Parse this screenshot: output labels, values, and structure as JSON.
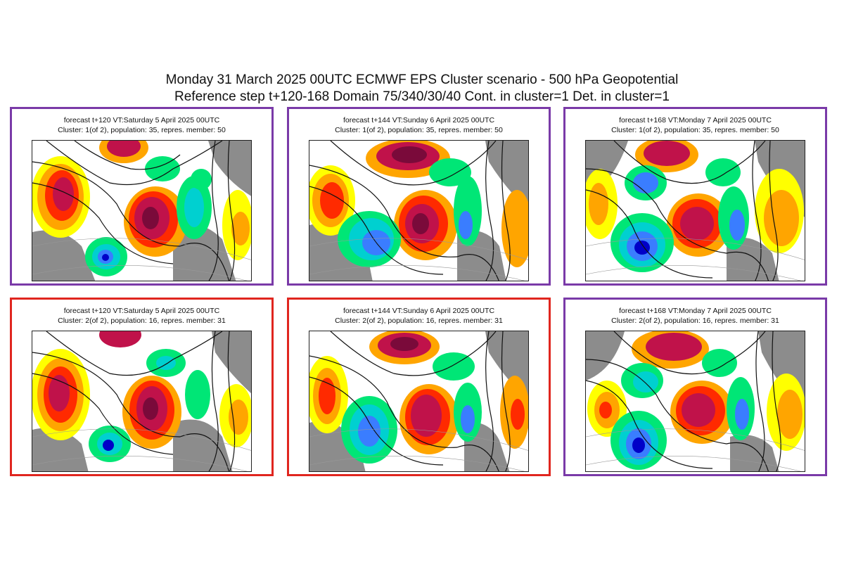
{
  "title": {
    "line1": "Monday 31 March 2025 00UTC ECMWF EPS Cluster scenario - 500 hPa Geopotential",
    "line2": "Reference step t+120-168 Domain 75/340/30/40 Cont. in cluster=1 Det. in cluster=1"
  },
  "colors": {
    "cluster1_border": "#7a3aa8",
    "cluster2_border": "#e0261f",
    "anomaly_positive": [
      "#ffff00",
      "#ffa500",
      "#ff2a00",
      "#c0124a",
      "#7a0a3a"
    ],
    "anomaly_negative": [
      "#00e676",
      "#00d0d0",
      "#3a7dff",
      "#0000c8"
    ],
    "land_mask": "#8c8c8c"
  },
  "panels": [
    {
      "header": "forecast t+120 VT:Saturday 5 April 2025 00UTC",
      "cluster": "Cluster: 1(of 2), population: 35, repres. member: 50",
      "border": "purple"
    },
    {
      "header": "forecast t+144 VT:Sunday 6 April 2025 00UTC",
      "cluster": "Cluster: 1(of 2), population: 35, repres. member: 50",
      "border": "purple"
    },
    {
      "header": "forecast t+168 VT:Monday 7 April 2025 00UTC",
      "cluster": "Cluster: 1(of 2), population: 35, repres. member: 50",
      "border": "purple"
    },
    {
      "header": "forecast t+120 VT:Saturday 5 April 2025 00UTC",
      "cluster": "Cluster: 2(of 2), population: 16, repres. member: 31",
      "border": "red"
    },
    {
      "header": "forecast t+144 VT:Sunday 6 April 2025 00UTC",
      "cluster": "Cluster: 2(of 2), population: 16, repres. member: 31",
      "border": "red"
    },
    {
      "header": "forecast t+168 VT:Monday 7 April 2025 00UTC",
      "cluster": "Cluster: 2(of 2), population: 16, repres. member: 31",
      "border": "purple"
    }
  ]
}
